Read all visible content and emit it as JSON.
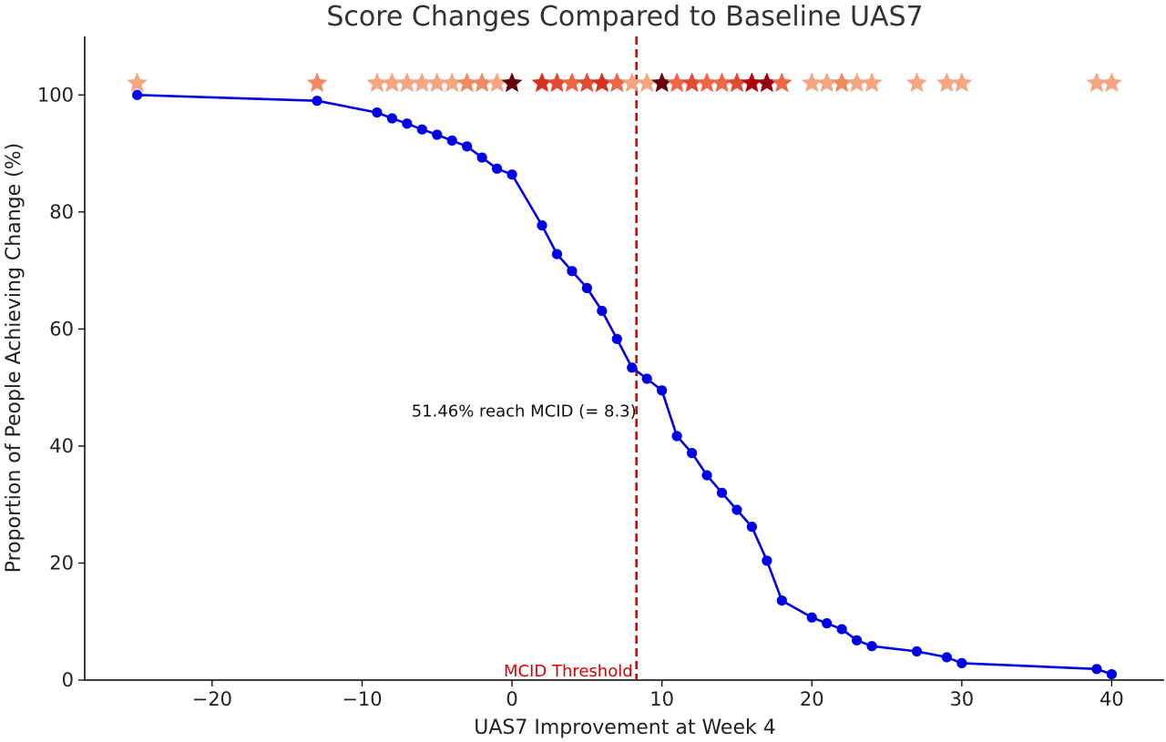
{
  "chart_data": {
    "type": "line",
    "title": "Score Changes Compared to Baseline UAS7",
    "xlabel": "UAS7 Improvement at Week 4",
    "ylabel": "Proportion of People Achieving Change (%)",
    "xlim": [
      -28.5,
      43.5
    ],
    "ylim": [
      0,
      110
    ],
    "xticks": [
      -20,
      -10,
      0,
      10,
      20,
      30,
      40
    ],
    "yticks": [
      0,
      20,
      40,
      60,
      80,
      100
    ],
    "xtick_labels": [
      "−20",
      "−10",
      "0",
      "10",
      "20",
      "30",
      "40"
    ],
    "ytick_labels": [
      "0",
      "20",
      "40",
      "60",
      "80",
      "100"
    ],
    "grid": false,
    "series": [
      {
        "color": "#0000e6",
        "x": [
          -25,
          -13,
          -9,
          -8,
          -7,
          -6,
          -5,
          -4,
          -3,
          -2,
          -1,
          0,
          2,
          3,
          4,
          5,
          6,
          7,
          8,
          9,
          10,
          11,
          12,
          13,
          14,
          15,
          16,
          17,
          18,
          20,
          21,
          22,
          23,
          24,
          27,
          29,
          30,
          39,
          40
        ],
        "y": [
          100,
          99,
          97,
          96,
          95.1,
          94.1,
          93.2,
          92.2,
          91.2,
          89.3,
          87.4,
          86.4,
          77.7,
          72.8,
          69.9,
          67,
          63.1,
          58.3,
          53.4,
          51.5,
          49.5,
          41.7,
          38.8,
          35,
          32,
          29.1,
          26.2,
          20.4,
          13.6,
          10.7,
          9.7,
          8.7,
          6.8,
          5.8,
          4.9,
          3.9,
          2.9,
          1.9,
          1
        ]
      }
    ],
    "stars": {
      "y": 102,
      "points": [
        {
          "x": -25,
          "color": "#f4a582"
        },
        {
          "x": -13,
          "color": "#ef8a62"
        },
        {
          "x": -9,
          "color": "#f4a582"
        },
        {
          "x": -8,
          "color": "#f4a582"
        },
        {
          "x": -7,
          "color": "#f4a582"
        },
        {
          "x": -6,
          "color": "#f4a582"
        },
        {
          "x": -5,
          "color": "#f4a582"
        },
        {
          "x": -4,
          "color": "#f4a582"
        },
        {
          "x": -3,
          "color": "#ef8a62"
        },
        {
          "x": -2,
          "color": "#ef8a62"
        },
        {
          "x": -1,
          "color": "#f4a582"
        },
        {
          "x": 0,
          "color": "#67000d"
        },
        {
          "x": 2,
          "color": "#d7301f"
        },
        {
          "x": 3,
          "color": "#e34a33"
        },
        {
          "x": 4,
          "color": "#ef6548"
        },
        {
          "x": 5,
          "color": "#e34a33"
        },
        {
          "x": 6,
          "color": "#d7301f"
        },
        {
          "x": 7,
          "color": "#ef6548"
        },
        {
          "x": 8,
          "color": "#f4a582"
        },
        {
          "x": 9,
          "color": "#f4a582"
        },
        {
          "x": 10,
          "color": "#67000d"
        },
        {
          "x": 11,
          "color": "#ef6548"
        },
        {
          "x": 12,
          "color": "#e34a33"
        },
        {
          "x": 13,
          "color": "#ef6548"
        },
        {
          "x": 14,
          "color": "#ef6548"
        },
        {
          "x": 15,
          "color": "#e34a33"
        },
        {
          "x": 16,
          "color": "#b30000"
        },
        {
          "x": 17,
          "color": "#99000d"
        },
        {
          "x": 18,
          "color": "#ef6548"
        },
        {
          "x": 20,
          "color": "#f4a582"
        },
        {
          "x": 21,
          "color": "#f4a582"
        },
        {
          "x": 22,
          "color": "#ef8a62"
        },
        {
          "x": 23,
          "color": "#f4a582"
        },
        {
          "x": 24,
          "color": "#f4a582"
        },
        {
          "x": 27,
          "color": "#f4a582"
        },
        {
          "x": 29,
          "color": "#f4a582"
        },
        {
          "x": 30,
          "color": "#f4a582"
        },
        {
          "x": 39,
          "color": "#f4a582"
        },
        {
          "x": 40,
          "color": "#f4a582"
        }
      ]
    },
    "threshold": {
      "x": 8.3,
      "color": "#dd0000",
      "label": "MCID Threshold"
    },
    "annotation": {
      "text": "51.46% reach MCID (= 8.3)",
      "x": 8.3,
      "y": 46
    }
  }
}
